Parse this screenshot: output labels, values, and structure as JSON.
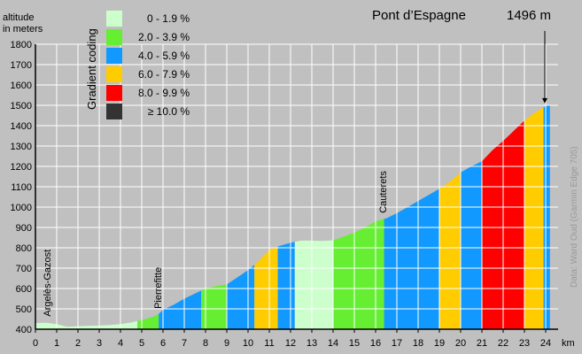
{
  "chart_data": {
    "type": "area",
    "title": "Pont d’Espagne",
    "summit_altitude": "1496 m",
    "ylabel": [
      "altitude",
      "in meters"
    ],
    "xlabel": "km",
    "ylim": [
      400,
      1800
    ],
    "xlim": [
      0,
      24.5
    ],
    "yticks": [
      400,
      500,
      600,
      700,
      800,
      900,
      1000,
      1100,
      1200,
      1300,
      1400,
      1500,
      1600,
      1700,
      1800
    ],
    "xticks": [
      0,
      1,
      2,
      3,
      4,
      5,
      6,
      7,
      8,
      9,
      10,
      11,
      12,
      13,
      14,
      15,
      16,
      17,
      18,
      19,
      20,
      21,
      22,
      23,
      24
    ],
    "grid": true,
    "profile": [
      [
        0,
        430
      ],
      [
        0.5,
        432
      ],
      [
        1,
        425
      ],
      [
        1.5,
        412
      ],
      [
        2,
        415
      ],
      [
        2.5,
        417
      ],
      [
        3,
        418
      ],
      [
        3.5,
        421
      ],
      [
        4,
        425
      ],
      [
        4.5,
        433
      ],
      [
        5,
        445
      ],
      [
        5.5,
        460
      ],
      [
        5.8,
        475
      ],
      [
        6,
        495
      ],
      [
        6.5,
        520
      ],
      [
        7,
        550
      ],
      [
        7.5,
        575
      ],
      [
        8,
        600
      ],
      [
        8.5,
        612
      ],
      [
        9,
        620
      ],
      [
        9.5,
        655
      ],
      [
        10,
        690
      ],
      [
        10.5,
        735
      ],
      [
        11,
        790
      ],
      [
        11.5,
        810
      ],
      [
        12,
        825
      ],
      [
        12.5,
        835
      ],
      [
        13,
        835
      ],
      [
        13.5,
        834
      ],
      [
        14,
        837
      ],
      [
        14.5,
        855
      ],
      [
        15,
        875
      ],
      [
        15.5,
        900
      ],
      [
        16,
        930
      ],
      [
        16.5,
        945
      ],
      [
        17,
        970
      ],
      [
        17.5,
        1000
      ],
      [
        18,
        1030
      ],
      [
        18.5,
        1060
      ],
      [
        19,
        1090
      ],
      [
        19.5,
        1125
      ],
      [
        20,
        1170
      ],
      [
        20.5,
        1200
      ],
      [
        21,
        1225
      ],
      [
        21.5,
        1280
      ],
      [
        22,
        1325
      ],
      [
        22.5,
        1375
      ],
      [
        23,
        1425
      ],
      [
        23.5,
        1465
      ],
      [
        24,
        1496
      ],
      [
        24.2,
        1500
      ]
    ],
    "segments": [
      {
        "from": 0,
        "to": 4.8,
        "band": "0"
      },
      {
        "from": 4.8,
        "to": 5.8,
        "band": "1"
      },
      {
        "from": 5.8,
        "to": 7.8,
        "band": "2"
      },
      {
        "from": 7.8,
        "to": 9.0,
        "band": "1"
      },
      {
        "from": 9.0,
        "to": 10.3,
        "band": "2"
      },
      {
        "from": 10.3,
        "to": 11.4,
        "band": "3"
      },
      {
        "from": 11.4,
        "to": 12.2,
        "band": "2"
      },
      {
        "from": 12.2,
        "to": 14.0,
        "band": "0"
      },
      {
        "from": 14.0,
        "to": 16.4,
        "band": "1"
      },
      {
        "from": 16.4,
        "to": 19.0,
        "band": "2"
      },
      {
        "from": 19.0,
        "to": 20.0,
        "band": "3"
      },
      {
        "from": 20.0,
        "to": 21.0,
        "band": "2"
      },
      {
        "from": 21.0,
        "to": 23.0,
        "band": "4"
      },
      {
        "from": 23.0,
        "to": 23.9,
        "band": "3"
      },
      {
        "from": 23.9,
        "to": 24.2,
        "band": "2"
      }
    ],
    "legend": {
      "title": "Gradient coding",
      "placement": "top-left",
      "items": [
        {
          "label": "0 - 1.9 %",
          "color": "#ccffcc"
        },
        {
          "label": "2.0 - 3.9 %",
          "color": "#66ee33"
        },
        {
          "label": "4.0 - 5.9 %",
          "color": "#1199ff"
        },
        {
          "label": "6.0 - 7.9 %",
          "color": "#ffcc00"
        },
        {
          "label": "8.0 - 9.9 %",
          "color": "#ff0000"
        },
        {
          "label": "≥ 10.0 %",
          "color": "#333333"
        }
      ]
    },
    "places": [
      {
        "name": "Argelès-Gazost",
        "km": 0.5,
        "alt": 432
      },
      {
        "name": "Pierrefitte",
        "km": 5.7,
        "alt": 470
      },
      {
        "name": "Cauterets",
        "km": 16.3,
        "alt": 940
      }
    ],
    "credit": "Data: Ward Oud (Garmin Edge 705)"
  }
}
